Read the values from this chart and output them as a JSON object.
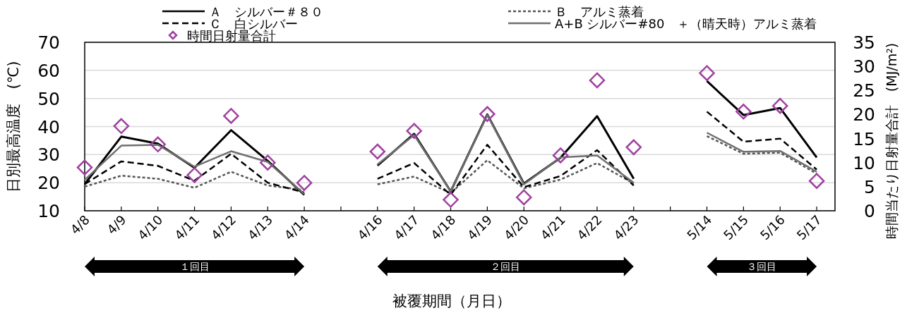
{
  "chart_data": {
    "type": "line",
    "xlabel": "被覆期間（月日）",
    "ylabel": "日別最高温度　(℃)",
    "y2label": "時間当たり日射量合計　(MJ/m²)",
    "categories": [
      "4/8",
      "4/9",
      "4/10",
      "4/11",
      "4/12",
      "4/13",
      "4/14",
      null,
      "4/16",
      "4/17",
      "4/18",
      "4/19",
      "4/20",
      "4/21",
      "4/22",
      "4/23",
      null,
      "5/14",
      "5/15",
      "5/16",
      "5/17"
    ],
    "series": [
      {
        "name": "Ａ　シルバー＃８０",
        "color": "#000000",
        "line_style": "solid",
        "marker": "none",
        "values": [
          19.5,
          36.4,
          33.9,
          25.3,
          38.7,
          27.8,
          15.7,
          null,
          26.1,
          37.4,
          16.9,
          44.3,
          19.7,
          28.9,
          43.7,
          21.4,
          null,
          56.2,
          44.1,
          46.6,
          29.0
        ]
      },
      {
        "name": "Ｂ　アルミ蒸着",
        "color": "#555555",
        "line_style": "dotted",
        "marker": "none",
        "values": [
          18.6,
          22.5,
          21.4,
          18.2,
          23.9,
          19.0,
          17.4,
          null,
          19.4,
          22.2,
          16.3,
          28.0,
          18.0,
          21.1,
          27.0,
          19.7,
          null,
          36.6,
          30.3,
          30.7,
          23.2
        ]
      },
      {
        "name": "Ｃ　白シルバー",
        "color": "#000000",
        "line_style": "dashed",
        "marker": "none",
        "values": [
          19.5,
          27.6,
          26.0,
          20.7,
          30.3,
          20.0,
          16.5,
          null,
          21.4,
          27.0,
          15.7,
          33.5,
          18.4,
          22.4,
          31.6,
          19.0,
          null,
          45.3,
          34.6,
          35.7,
          24.7
        ]
      },
      {
        "name": "A+B シルバー#80　＋（晴天時）アルミ蒸着",
        "color": "#707070",
        "line_style": "solid",
        "marker": "none",
        "values": [
          21.0,
          33.2,
          33.5,
          25.7,
          31.2,
          27.4,
          16.0,
          null,
          26.5,
          37.0,
          16.9,
          44.1,
          19.4,
          29.0,
          29.7,
          20.0,
          null,
          37.8,
          31.0,
          31.3,
          23.9
        ]
      },
      {
        "name": "時間日射量合計",
        "type": "scatter",
        "axis": "y2",
        "color": "#a040a0",
        "marker": "diamond",
        "values": [
          9.0,
          17.6,
          13.8,
          7.4,
          19.7,
          10.0,
          5.8,
          null,
          12.3,
          16.6,
          2.3,
          20.1,
          2.8,
          11.5,
          27.1,
          13.2,
          null,
          28.6,
          20.6,
          21.8,
          6.2
        ]
      }
    ],
    "ylim": [
      10,
      70
    ],
    "yticks": [
      10,
      20,
      30,
      40,
      50,
      60,
      70
    ],
    "y2lim": [
      0,
      35
    ],
    "y2ticks": [
      0,
      5,
      10,
      15,
      20,
      25,
      30,
      35
    ],
    "grid": "y",
    "legend": "top",
    "annotations": [
      "１回目",
      "２回目",
      "３回目"
    ]
  }
}
